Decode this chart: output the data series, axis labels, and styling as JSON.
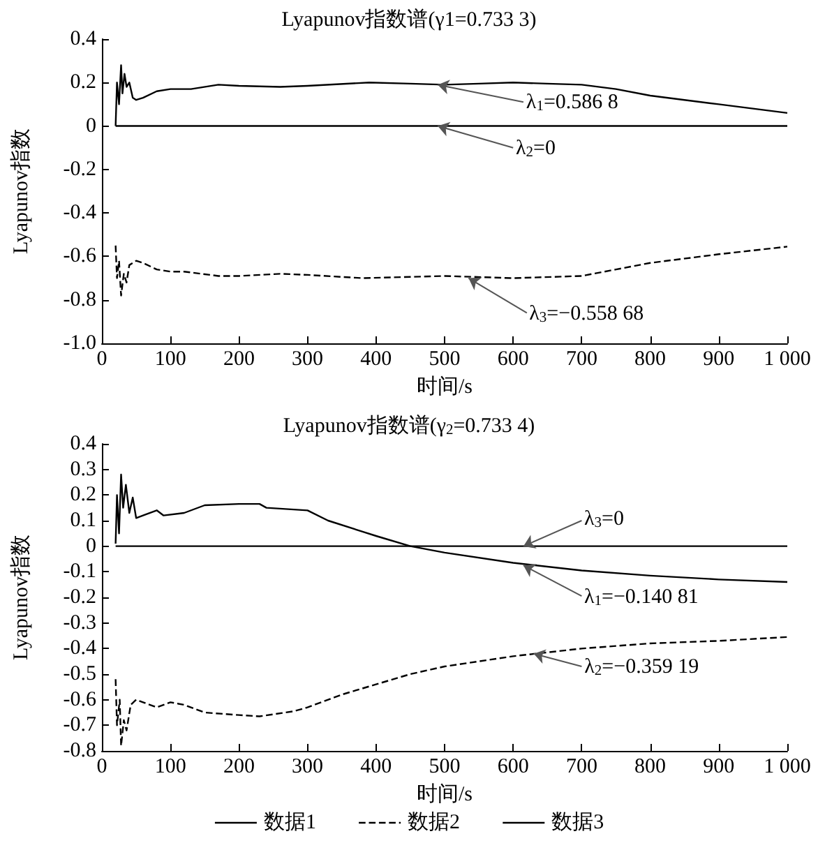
{
  "chart_data": [
    {
      "type": "line",
      "title": "Lyapunov指数谱(γ1=0.733 3)",
      "xlabel": "时间/s",
      "ylabel": "Lyapunov指数",
      "xlim": [
        0,
        1000
      ],
      "xticks": [
        0,
        100,
        200,
        300,
        400,
        500,
        600,
        700,
        800,
        900,
        {
          "value": 1000,
          "label": "1 000"
        }
      ],
      "ylim": [
        -1,
        0.4
      ],
      "yticks": [
        {
          "value": -1,
          "label": "-1.0"
        },
        -0.8,
        -0.6,
        -0.4,
        -0.2,
        0,
        0.2,
        0.4
      ],
      "grid": false,
      "legend": false,
      "marker": "none",
      "series": [
        {
          "color": "#000000",
          "line_style": "solid",
          "x": [
            20,
            22,
            25,
            28,
            30,
            33,
            36,
            40,
            45,
            50,
            60,
            80,
            100,
            130,
            170,
            200,
            260,
            300,
            390,
            450,
            500,
            550,
            600,
            650,
            700,
            750,
            800,
            850,
            900,
            950,
            1000
          ],
          "values": [
            0.0,
            0.2,
            0.1,
            0.28,
            0.15,
            0.24,
            0.18,
            0.2,
            0.13,
            0.12,
            0.13,
            0.16,
            0.17,
            0.17,
            0.19,
            0.185,
            0.18,
            0.185,
            0.2,
            0.195,
            0.19,
            0.195,
            0.2,
            0.195,
            0.19,
            0.17,
            0.14,
            0.12,
            0.1,
            0.08,
            0.06
          ]
        },
        {
          "color": "#000000",
          "line_style": "dashed",
          "x": [
            20,
            22,
            25,
            28,
            32,
            36,
            40,
            50,
            60,
            80,
            100,
            120,
            170,
            200,
            260,
            300,
            380,
            500,
            600,
            700,
            750,
            800,
            900,
            1000
          ],
          "values": [
            -0.55,
            -0.7,
            -0.62,
            -0.78,
            -0.68,
            -0.72,
            -0.64,
            -0.62,
            -0.63,
            -0.66,
            -0.67,
            -0.67,
            -0.69,
            -0.69,
            -0.68,
            -0.685,
            -0.7,
            -0.69,
            -0.7,
            -0.69,
            -0.66,
            -0.63,
            -0.59,
            -0.555
          ]
        },
        {
          "color": "#000000",
          "line_style": "solid",
          "x": [
            20,
            1000
          ],
          "values": [
            0,
            0
          ]
        }
      ],
      "annotations": [
        {
          "text": "λ$_{1}$=0.586 8",
          "x": 490,
          "y": 0.19
        },
        {
          "text": "λ$_{2}$=0",
          "x": 490,
          "y": 0
        },
        {
          "text": "λ$_{3}$=−0.558 68",
          "x": 535,
          "y": -0.7
        }
      ]
    },
    {
      "type": "line",
      "title": "Lyapunov指数谱(γ$_{2}$=0.733 4)",
      "xlabel": "时间/s",
      "ylabel": "Lyapunov指数",
      "xlim": [
        0,
        1000
      ],
      "xticks": [
        0,
        100,
        200,
        300,
        400,
        500,
        600,
        700,
        800,
        900,
        {
          "value": 1000,
          "label": "1 000"
        }
      ],
      "ylim": [
        -0.8,
        0.4
      ],
      "yticks": [
        -0.8,
        -0.7,
        -0.6,
        -0.5,
        -0.4,
        -0.3,
        -0.2,
        -0.1,
        0,
        0.1,
        0.2,
        0.3,
        0.4
      ],
      "grid": false,
      "legend": "bottom",
      "marker": "none",
      "series": [
        {
          "name": "数据1",
          "color": "#000000",
          "line_style": "solid",
          "x": [
            20,
            22,
            25,
            28,
            31,
            35,
            40,
            45,
            50,
            60,
            80,
            90,
            120,
            150,
            200,
            230,
            240,
            300,
            330,
            400,
            450,
            500,
            600,
            700,
            800,
            900,
            1000
          ],
          "values": [
            0.01,
            0.2,
            0.05,
            0.28,
            0.15,
            0.24,
            0.13,
            0.19,
            0.11,
            0.12,
            0.14,
            0.12,
            0.13,
            0.16,
            0.165,
            0.165,
            0.15,
            0.14,
            0.1,
            0.04,
            0.0,
            -0.025,
            -0.065,
            -0.095,
            -0.115,
            -0.13,
            -0.14
          ]
        },
        {
          "name": "数据2",
          "color": "#000000",
          "line_style": "dashed",
          "x": [
            20,
            22,
            26,
            28,
            32,
            36,
            42,
            50,
            60,
            80,
            100,
            120,
            150,
            200,
            230,
            280,
            300,
            350,
            400,
            450,
            500,
            600,
            700,
            800,
            900,
            1000
          ],
          "values": [
            -0.52,
            -0.7,
            -0.6,
            -0.78,
            -0.68,
            -0.72,
            -0.62,
            -0.6,
            -0.61,
            -0.63,
            -0.61,
            -0.62,
            -0.65,
            -0.66,
            -0.665,
            -0.645,
            -0.63,
            -0.58,
            -0.54,
            -0.5,
            -0.47,
            -0.43,
            -0.4,
            -0.38,
            -0.37,
            -0.355
          ]
        },
        {
          "name": "数据3",
          "color": "#000000",
          "line_style": "solid",
          "x": [
            20,
            1000
          ],
          "values": [
            0,
            0
          ]
        }
      ],
      "annotations": [
        {
          "text": "λ$_{3}$=0",
          "x": 615,
          "y": 0
        },
        {
          "text": "λ$_{1}$=−0.140 81",
          "x": 615,
          "y": -0.075
        },
        {
          "text": "λ$_{2}$=−0.359 19",
          "x": 630,
          "y": -0.42
        }
      ]
    }
  ]
}
